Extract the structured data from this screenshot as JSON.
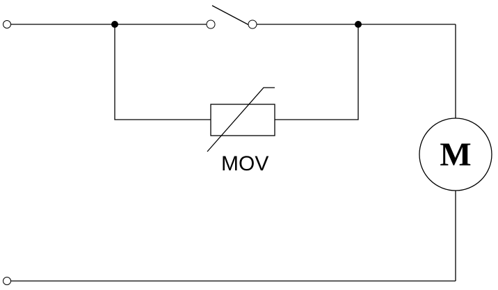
{
  "diagram": {
    "varistor_label": "MOV",
    "motor_label": "M"
  }
}
